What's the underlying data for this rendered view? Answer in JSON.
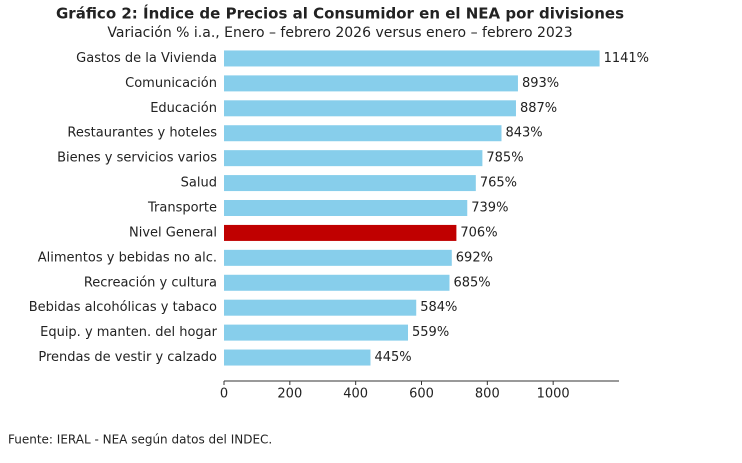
{
  "chart_data": {
    "type": "barh",
    "title": "Gráfico 2: Índice de Precios al Consumidor en el NEA por divisiones",
    "subtitle": "Variación % i.a., Enero – febrero 2026 versus enero – febrero 2023",
    "categories": [
      "Gastos de la Vivienda",
      "Comunicación",
      "Educación",
      "Restaurantes y hoteles",
      "Bienes y servicios varios",
      "Salud",
      "Transporte",
      "Nivel General",
      "Alimentos y bebidas no alc.",
      "Recreación y cultura",
      "Bebidas alcohólicas y tabaco",
      "Equip. y manten. del hogar",
      "Prendas de vestir y calzado"
    ],
    "values": [
      1141,
      893,
      887,
      843,
      785,
      765,
      739,
      706,
      692,
      685,
      584,
      559,
      445
    ],
    "value_labels": [
      "1141%",
      "893%",
      "887%",
      "843%",
      "785%",
      "765%",
      "739%",
      "706%",
      "692%",
      "685%",
      "584%",
      "559%",
      "445%"
    ],
    "colors": [
      "#87ceeb",
      "#87ceeb",
      "#87ceeb",
      "#87ceeb",
      "#87ceeb",
      "#87ceeb",
      "#87ceeb",
      "#c00000",
      "#87ceeb",
      "#87ceeb",
      "#87ceeb",
      "#87ceeb",
      "#87ceeb"
    ],
    "xlim": [
      0,
      1200
    ],
    "xticks": [
      0,
      200,
      400,
      600,
      800,
      1000
    ],
    "source": "Fuente: IERAL - NEA según datos del INDEC."
  }
}
